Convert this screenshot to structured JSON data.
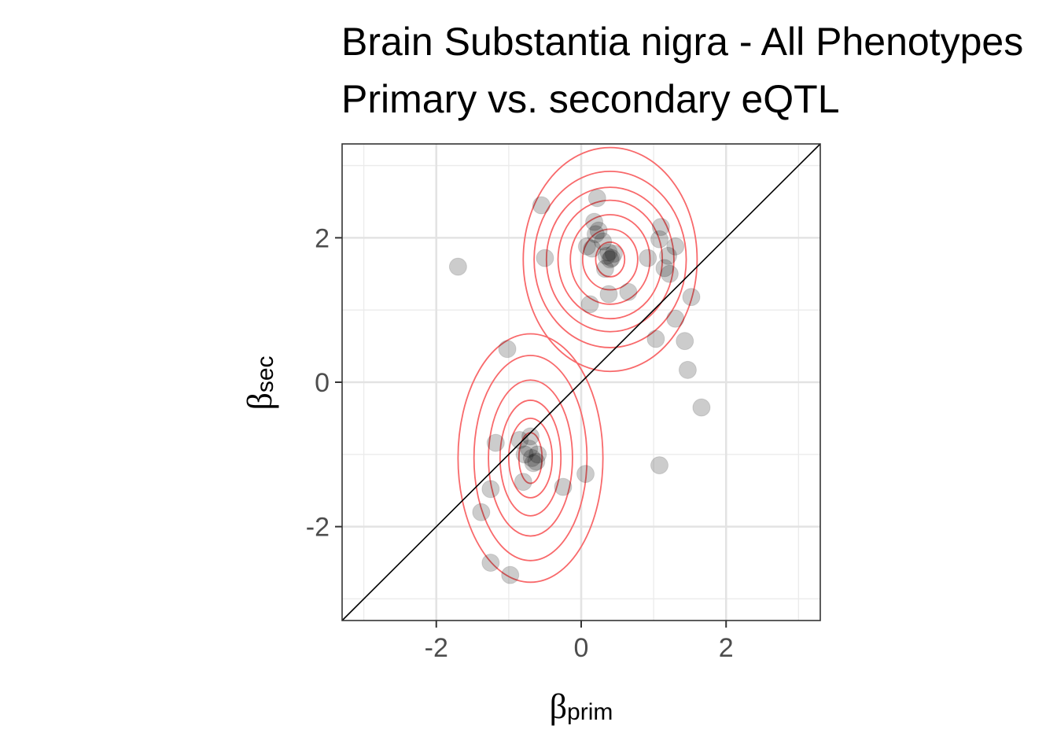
{
  "chart_data": {
    "type": "scatter",
    "title": "Brain Substantia nigra - All Phenotypes",
    "subtitle": "Primary vs. secondary eQTL",
    "xlabel": {
      "symbol": "β",
      "subscript": "prim"
    },
    "ylabel": {
      "symbol": "β",
      "subscript": "sec"
    },
    "xlim": [
      -3.3,
      3.3
    ],
    "ylim": [
      -3.3,
      3.3
    ],
    "x_ticks": [
      -2,
      0,
      2
    ],
    "y_ticks": [
      -2,
      0,
      2
    ],
    "x_tick_labels": [
      "-2",
      "0",
      "2"
    ],
    "y_tick_labels": [
      "-2",
      "0",
      "2"
    ],
    "grid": true,
    "reference_line": {
      "type": "identity",
      "color": "#000000"
    },
    "point_color": "#000000",
    "point_opacity": 0.2,
    "contour_color": "#f8696b",
    "points": [
      {
        "x": -1.7,
        "y": 1.6
      },
      {
        "x": -0.55,
        "y": 2.45
      },
      {
        "x": -0.5,
        "y": 1.72
      },
      {
        "x": 0.22,
        "y": 2.55
      },
      {
        "x": 0.18,
        "y": 2.22
      },
      {
        "x": 0.2,
        "y": 2.05
      },
      {
        "x": 0.24,
        "y": 2.1
      },
      {
        "x": 0.08,
        "y": 1.88
      },
      {
        "x": 0.15,
        "y": 1.85
      },
      {
        "x": 0.3,
        "y": 1.95
      },
      {
        "x": 0.35,
        "y": 1.75
      },
      {
        "x": 0.4,
        "y": 1.7
      },
      {
        "x": 0.45,
        "y": 1.78
      },
      {
        "x": 0.42,
        "y": 1.72
      },
      {
        "x": 0.38,
        "y": 1.8
      },
      {
        "x": 0.33,
        "y": 1.57
      },
      {
        "x": 0.12,
        "y": 1.08
      },
      {
        "x": 0.38,
        "y": 1.22
      },
      {
        "x": 0.65,
        "y": 1.25
      },
      {
        "x": 0.92,
        "y": 1.72
      },
      {
        "x": 1.1,
        "y": 2.15
      },
      {
        "x": 1.08,
        "y": 1.98
      },
      {
        "x": 1.2,
        "y": 1.75
      },
      {
        "x": 1.3,
        "y": 1.88
      },
      {
        "x": 1.15,
        "y": 1.58
      },
      {
        "x": 1.22,
        "y": 1.5
      },
      {
        "x": 1.52,
        "y": 1.18
      },
      {
        "x": 1.3,
        "y": 0.88
      },
      {
        "x": 1.03,
        "y": 0.6
      },
      {
        "x": 1.43,
        "y": 0.57
      },
      {
        "x": 1.47,
        "y": 0.17
      },
      {
        "x": 1.66,
        "y": -0.35
      },
      {
        "x": 1.08,
        "y": -1.15
      },
      {
        "x": -1.02,
        "y": 0.46
      },
      {
        "x": -1.18,
        "y": -0.84
      },
      {
        "x": -0.85,
        "y": -0.8
      },
      {
        "x": -0.7,
        "y": -0.75
      },
      {
        "x": -0.78,
        "y": -1.0
      },
      {
        "x": -0.68,
        "y": -1.05
      },
      {
        "x": -0.62,
        "y": -1.1
      },
      {
        "x": -0.6,
        "y": -1.0
      },
      {
        "x": -0.66,
        "y": -1.12
      },
      {
        "x": -0.72,
        "y": -0.92
      },
      {
        "x": -0.8,
        "y": -1.38
      },
      {
        "x": -1.25,
        "y": -1.48
      },
      {
        "x": -0.25,
        "y": -1.45
      },
      {
        "x": 0.06,
        "y": -1.27
      },
      {
        "x": -1.38,
        "y": -1.8
      },
      {
        "x": -1.25,
        "y": -2.5
      },
      {
        "x": -0.98,
        "y": -2.67
      }
    ],
    "density_clusters": [
      {
        "cx": 0.4,
        "cy": 1.7,
        "levels": [
          [
            0.2,
            0.24
          ],
          [
            0.38,
            0.42
          ],
          [
            0.55,
            0.62
          ],
          [
            0.72,
            0.82
          ],
          [
            0.88,
            1.0
          ],
          [
            1.05,
            1.22
          ],
          [
            1.2,
            1.55
          ]
        ]
      },
      {
        "cx": -0.7,
        "cy": -1.05,
        "levels": [
          [
            0.16,
            0.35
          ],
          [
            0.3,
            0.55
          ],
          [
            0.42,
            0.8
          ],
          [
            0.58,
            1.08
          ],
          [
            0.78,
            1.42
          ],
          [
            1.0,
            1.72
          ]
        ]
      }
    ]
  }
}
